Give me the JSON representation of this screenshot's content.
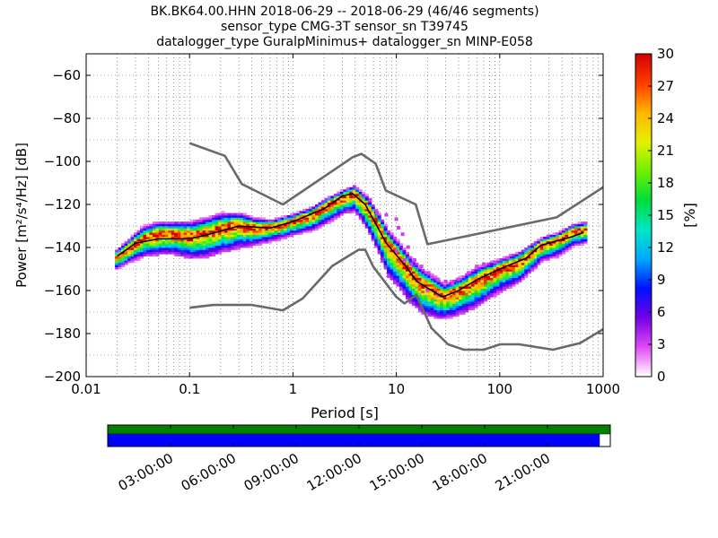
{
  "chart_data": {
    "type": "heatmap",
    "title_lines": [
      "BK.BK64.00.HHN   2018-06-29 -- 2018-06-29  (46/46 segments)",
      "sensor_type CMG-3T sensor_sn T39745",
      "datalogger_type GuralpMinimus+ datalogger_sn MINP-E058"
    ],
    "xlabel": "Period [s]",
    "ylabel": "Power [m²/s⁴/Hz] [dB]",
    "x_scale": "log",
    "xlim": [
      0.01,
      1000
    ],
    "ylim": [
      -200,
      -50
    ],
    "x_ticks": [
      {
        "value": 0.01,
        "label": "0.01"
      },
      {
        "value": 0.1,
        "label": "0.1"
      },
      {
        "value": 1,
        "label": "1"
      },
      {
        "value": 10,
        "label": "10"
      },
      {
        "value": 100,
        "label": "100"
      },
      {
        "value": 1000,
        "label": "1000"
      }
    ],
    "y_ticks": [
      -60,
      -80,
      -100,
      -120,
      -140,
      -160,
      -180,
      -200
    ],
    "grid": true,
    "colorbar": {
      "label": "[%]",
      "min": 0,
      "max": 30,
      "ticks": [
        0,
        3,
        6,
        9,
        12,
        15,
        18,
        21,
        24,
        27,
        30
      ],
      "colormap": [
        "#ffffff",
        "#e14bf6",
        "#7300e6",
        "#0010ff",
        "#00a8ff",
        "#00e6c8",
        "#00dc3c",
        "#6ef000",
        "#e6f000",
        "#ffb400",
        "#ff3c00",
        "#d20000"
      ]
    },
    "noise_models": {
      "color": "#696969",
      "high": [
        [
          0.1,
          -91.5
        ],
        [
          0.22,
          -97.4
        ],
        [
          0.32,
          -110.5
        ],
        [
          0.8,
          -120
        ],
        [
          3.8,
          -98
        ],
        [
          4.6,
          -96.5
        ],
        [
          6.3,
          -101
        ],
        [
          7.9,
          -113.5
        ],
        [
          15.4,
          -120
        ],
        [
          20,
          -138.5
        ],
        [
          354.8,
          -126
        ],
        [
          1000,
          -112
        ]
      ],
      "low": [
        [
          0.1,
          -168
        ],
        [
          0.17,
          -166.7
        ],
        [
          0.4,
          -166.7
        ],
        [
          0.8,
          -169.2
        ],
        [
          1.24,
          -163.7
        ],
        [
          2.4,
          -148.6
        ],
        [
          4.3,
          -141.1
        ],
        [
          5,
          -141.1
        ],
        [
          6,
          -149
        ],
        [
          10,
          -163
        ],
        [
          12,
          -166
        ],
        [
          15.6,
          -162
        ],
        [
          21.9,
          -177.5
        ],
        [
          31.6,
          -185
        ],
        [
          45,
          -187.5
        ],
        [
          70,
          -187.5
        ],
        [
          101,
          -185
        ],
        [
          154,
          -185
        ],
        [
          328,
          -187.5
        ],
        [
          600,
          -184.4
        ],
        [
          1000,
          -178
        ]
      ]
    },
    "median_curve": {
      "color": "#000000",
      "points": [
        [
          0.02,
          -144
        ],
        [
          0.03,
          -138
        ],
        [
          0.05,
          -136
        ],
        [
          0.1,
          -136
        ],
        [
          0.15,
          -134
        ],
        [
          0.3,
          -130
        ],
        [
          0.6,
          -131
        ],
        [
          1,
          -128
        ],
        [
          2,
          -122
        ],
        [
          3,
          -116
        ],
        [
          3.8,
          -115
        ],
        [
          5,
          -120
        ],
        [
          8,
          -138
        ],
        [
          12,
          -148
        ],
        [
          16,
          -156
        ],
        [
          22,
          -160
        ],
        [
          28,
          -163
        ],
        [
          40,
          -160
        ],
        [
          60,
          -155
        ],
        [
          100,
          -150
        ],
        [
          180,
          -145
        ],
        [
          250,
          -139
        ],
        [
          500,
          -135
        ],
        [
          650,
          -133
        ]
      ]
    },
    "density_band": [
      [
        0.019,
        -145,
        3,
        5
      ],
      [
        0.025,
        -141,
        4,
        6
      ],
      [
        0.035,
        -136,
        5,
        8
      ],
      [
        0.05,
        -134,
        5,
        9
      ],
      [
        0.07,
        -134,
        5,
        9
      ],
      [
        0.1,
        -135,
        6,
        10
      ],
      [
        0.15,
        -133,
        6,
        11
      ],
      [
        0.2,
        -131,
        6,
        11
      ],
      [
        0.3,
        -130,
        5,
        10
      ],
      [
        0.4,
        -131,
        4,
        8
      ],
      [
        0.6,
        -131,
        3,
        6
      ],
      [
        1,
        -128,
        3,
        6
      ],
      [
        1.5,
        -125,
        3,
        7
      ],
      [
        2,
        -121,
        3,
        8
      ],
      [
        3,
        -117,
        3,
        7
      ],
      [
        3.8,
        -115,
        3,
        8
      ],
      [
        5,
        -121,
        4,
        10
      ],
      [
        6.5,
        -130,
        5,
        12
      ],
      [
        8,
        -139,
        6,
        14
      ],
      [
        10,
        -144,
        6,
        14
      ],
      [
        13,
        -151,
        6,
        14
      ],
      [
        17,
        -157,
        6,
        13
      ],
      [
        22,
        -160,
        6,
        12
      ],
      [
        28,
        -163,
        5,
        10
      ],
      [
        40,
        -160,
        5,
        11
      ],
      [
        60,
        -155,
        5,
        12
      ],
      [
        100,
        -150,
        4,
        10
      ],
      [
        150,
        -147,
        4,
        9
      ],
      [
        250,
        -139,
        3,
        7
      ],
      [
        350,
        -137,
        3,
        7
      ],
      [
        500,
        -133,
        3,
        6
      ],
      [
        650,
        -132,
        3,
        6
      ]
    ],
    "outliers": [
      [
        5.6,
        -118
      ],
      [
        6.5,
        -124
      ],
      [
        8,
        -125
      ],
      [
        10,
        -127
      ],
      [
        10.5,
        -131
      ],
      [
        11.5,
        -134
      ],
      [
        13,
        -140
      ],
      [
        15,
        -146
      ],
      [
        17.5,
        -149
      ],
      [
        20,
        -152
      ],
      [
        22,
        -154
      ],
      [
        25,
        -155
      ],
      [
        30,
        -156
      ],
      [
        35,
        -157
      ],
      [
        40,
        -155
      ],
      [
        50,
        -152
      ],
      [
        60,
        -149
      ],
      [
        70,
        -148
      ],
      [
        90,
        -147
      ],
      [
        120,
        -145
      ],
      [
        10,
        -142
      ],
      [
        12,
        -146
      ],
      [
        14,
        -148
      ],
      [
        20,
        -160
      ],
      [
        25,
        -162
      ]
    ]
  },
  "timeline": {
    "tick_labels": [
      "03:00:00",
      "06:00:00",
      "09:00:00",
      "12:00:00",
      "15:00:00",
      "18:00:00",
      "21:00:00"
    ],
    "tick_fractions": [
      0.125,
      0.25,
      0.375,
      0.5,
      0.625,
      0.75,
      0.875
    ],
    "data_coverage_fraction": 1.0,
    "psd_coverage_fraction": 0.979,
    "data_color": "#007f00",
    "psd_color": "#0000ff"
  }
}
